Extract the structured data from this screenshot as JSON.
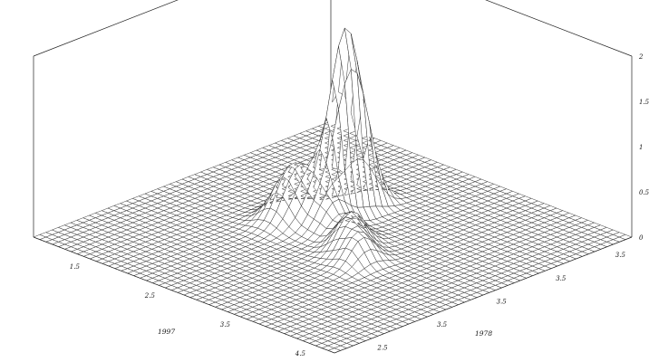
{
  "chart_data": {
    "type": "surface",
    "title": "",
    "xlabel": "1997",
    "ylabel": "1978",
    "zlabel": "",
    "zlim": [
      0,
      2
    ],
    "x_ticks": [
      "1.5",
      "2.5",
      "3.5",
      "4.5"
    ],
    "y_ticks": [
      "2.5",
      "3.5",
      "3.5",
      "3.5",
      "3.5"
    ],
    "z_ticks": [
      "0",
      "0.5",
      "1",
      "1.5",
      "2"
    ],
    "grid_points": 48,
    "peaks": [
      {
        "x_frac": 0.42,
        "y_frac": 0.37,
        "height": 2.05,
        "sx": 0.025,
        "sy": 0.055
      },
      {
        "x_frac": 0.36,
        "y_frac": 0.49,
        "height": 0.62,
        "sx": 0.04,
        "sy": 0.05
      },
      {
        "x_frac": 0.47,
        "y_frac": 0.47,
        "height": 0.32,
        "sx": 0.03,
        "sy": 0.04
      },
      {
        "x_frac": 0.56,
        "y_frac": 0.5,
        "height": 0.28,
        "sx": 0.03,
        "sy": 0.04
      },
      {
        "x_frac": 0.6,
        "y_frac": 0.54,
        "height": 0.3,
        "sx": 0.03,
        "sy": 0.04
      },
      {
        "x_frac": 0.66,
        "y_frac": 0.57,
        "height": 0.28,
        "sx": 0.03,
        "sy": 0.04
      }
    ],
    "grid": false,
    "legend": "none"
  }
}
